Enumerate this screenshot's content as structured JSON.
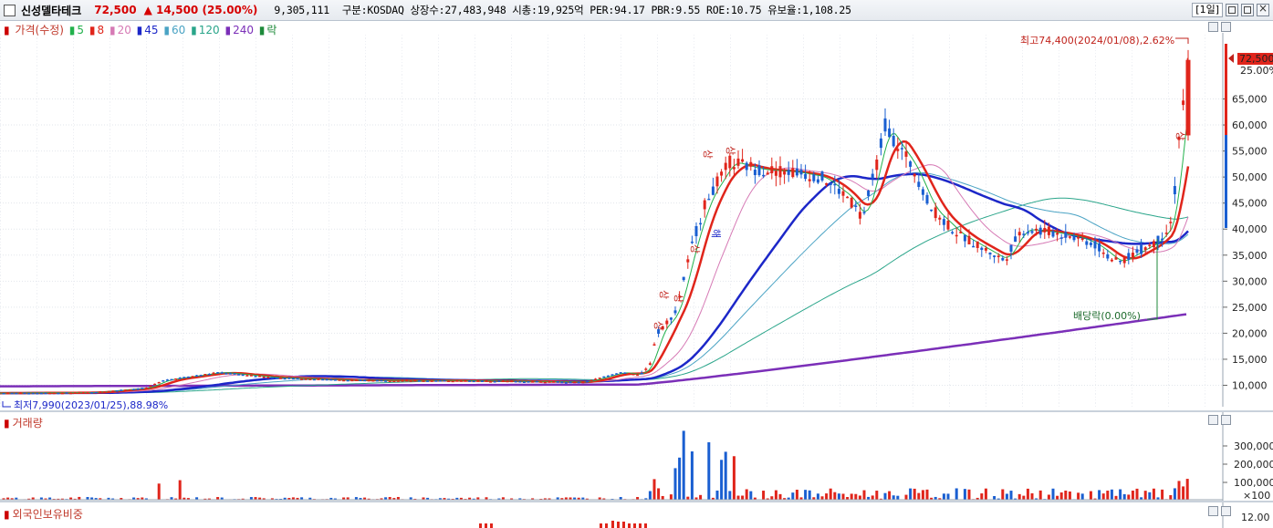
{
  "header": {
    "name": "신성델타테크",
    "price": "72,500",
    "change": "▲ 14,500 (25.00%)",
    "volume": "9,305,111",
    "info": "구분:KOSDAQ 상장수:27,483,948 시총:19,925억 PER:94.17 PBR:9.55 ROE:10.75 유보율:1,108.25",
    "period": "[1일]"
  },
  "legend": {
    "main": "가격(수정)",
    "ma5": "5",
    "ma8": "8",
    "ma20": "20",
    "ma45": "45",
    "ma60": "60",
    "ma120": "120",
    "ma240": "240",
    "rak": "락"
  },
  "annotations": {
    "high": "최고74,400(2024/01/08),2.62%",
    "low": "최저7,990(2023/01/25),88.98%",
    "dividend": "배당락(0.00%)",
    "sang": "상",
    "hae": "해",
    "last_price": "72,500",
    "last_pct": "25.00%"
  },
  "price_axis": [
    "65,000",
    "60,000",
    "55,000",
    "50,000",
    "45,000",
    "40,000",
    "35,000",
    "30,000",
    "25,000",
    "20,000",
    "15,000",
    "10,000"
  ],
  "volume_panel": {
    "title": "거래량",
    "axis": [
      "300,000",
      "200,000",
      "100,000",
      "×100"
    ]
  },
  "foreign_panel": {
    "title": "외국인보유비중",
    "axis": [
      "12.00"
    ]
  },
  "colors": {
    "up": "#e0251b",
    "down": "#1a5fd1",
    "ma5": "#22b14c",
    "ma8": "#e0251b",
    "ma20": "#d67ab5",
    "ma45": "#1c27c8",
    "ma60": "#4aa3c4",
    "ma120": "#2aa58a",
    "ma240": "#7b2fb8"
  }
}
